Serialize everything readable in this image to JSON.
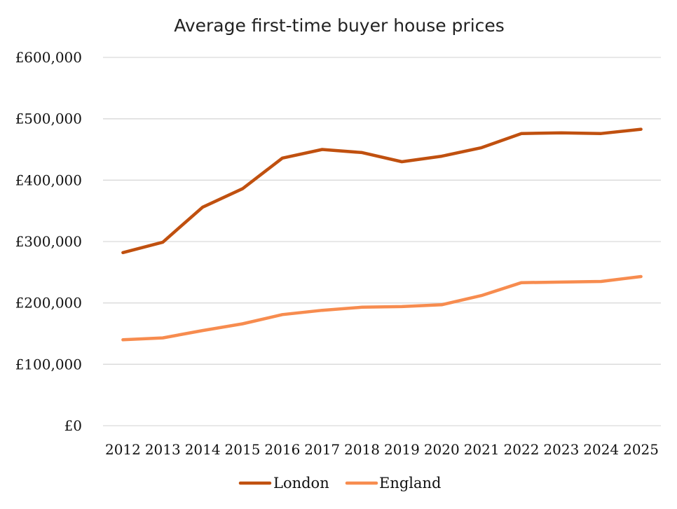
{
  "chart_data": {
    "type": "line",
    "title": "Average first-time buyer house prices",
    "xlabel": "",
    "ylabel": "",
    "x": [
      "2012",
      "2013",
      "2014",
      "2015",
      "2016",
      "2017",
      "2018",
      "2019",
      "2020",
      "2021",
      "2022",
      "2023",
      "2024",
      "2025"
    ],
    "ylim": [
      0,
      600000
    ],
    "yticks": [
      {
        "value": 0,
        "label": "£0"
      },
      {
        "value": 100000,
        "label": "£100,000"
      },
      {
        "value": 200000,
        "label": "£200,000"
      },
      {
        "value": 300000,
        "label": "£300,000"
      },
      {
        "value": 400000,
        "label": "£400,000"
      },
      {
        "value": 500000,
        "label": "£500,000"
      },
      {
        "value": 600000,
        "label": "£600,000"
      }
    ],
    "grid": true,
    "legend_position": "bottom",
    "series": [
      {
        "name": "London",
        "color": "#c0500f",
        "values": [
          282000,
          299000,
          356000,
          386000,
          436000,
          450000,
          445000,
          430000,
          439000,
          453000,
          476000,
          477000,
          476000,
          483000
        ]
      },
      {
        "name": "England",
        "color": "#f78c4f",
        "values": [
          140000,
          143000,
          155000,
          166000,
          181000,
          188000,
          193000,
          194000,
          197000,
          212000,
          233000,
          234000,
          235000,
          243000
        ]
      }
    ]
  }
}
